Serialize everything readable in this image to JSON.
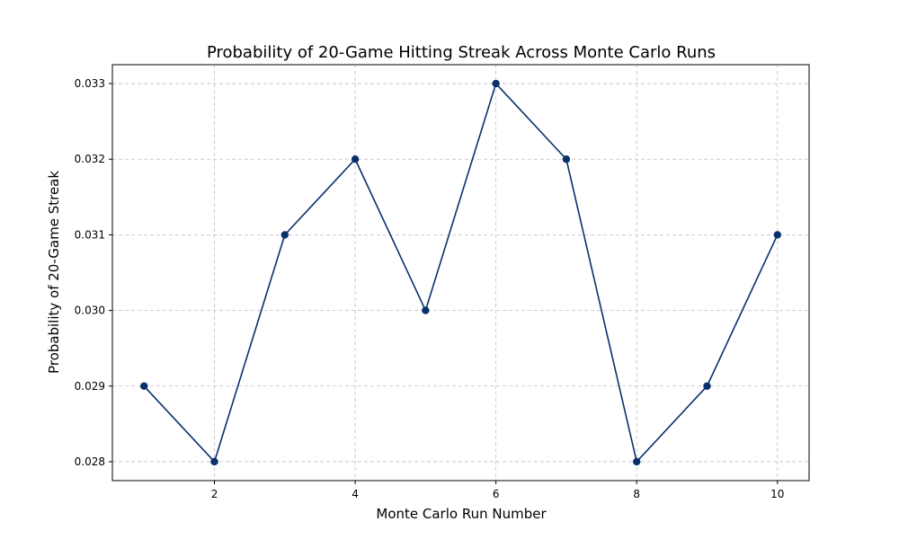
{
  "chart_data": {
    "type": "line",
    "title": "Probability of 20-Game Hitting Streak Across Monte Carlo Runs",
    "xlabel": "Monte Carlo Run Number",
    "ylabel": "Probability of 20-Game Streak",
    "x": [
      1,
      2,
      3,
      4,
      5,
      6,
      7,
      8,
      9,
      10
    ],
    "series": [
      {
        "values": [
          0.029,
          0.028,
          0.031,
          0.032,
          0.03,
          0.033,
          0.032,
          0.028,
          0.029,
          0.031
        ]
      }
    ],
    "xlim": [
      0.55,
      10.45
    ],
    "ylim": [
      0.02775,
      0.03325
    ],
    "xticks": [
      2,
      4,
      6,
      8,
      10
    ],
    "yticks": [
      0.028,
      0.029,
      0.03,
      0.031,
      0.032,
      0.033
    ],
    "ytick_labels": [
      "0.028",
      "0.029",
      "0.030",
      "0.031",
      "0.032",
      "0.033"
    ],
    "grid": true,
    "line_color": "#08306b",
    "marker": "circle"
  }
}
